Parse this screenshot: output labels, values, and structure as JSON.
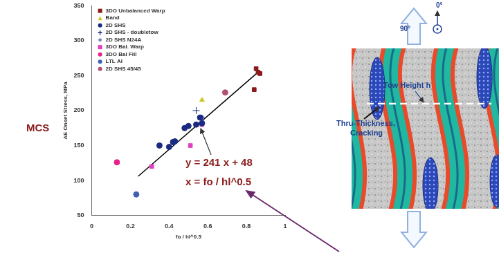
{
  "chart_data": {
    "type": "scatter",
    "side_label": "MCS",
    "x_label": "fo / hl^0.5",
    "y_label": "AE Onset Stress, MPa",
    "xlim": [
      0,
      1
    ],
    "xticks": [
      0,
      0.2,
      0.4,
      0.6,
      0.8,
      1
    ],
    "ylim": [
      50,
      350
    ],
    "yticks": [
      50,
      100,
      150,
      200,
      250,
      300,
      350
    ],
    "grid": false,
    "legend": "upper left",
    "series": [
      {
        "name": "3DO Unbalanced Warp",
        "color": "#8b1a1a",
        "marker": "square",
        "x": [
          0.85,
          0.86,
          0.87,
          0.84
        ],
        "values": [
          260,
          255,
          253,
          230
        ]
      },
      {
        "name": "Band",
        "color": "#c8c820",
        "marker": "triangle",
        "x": [
          0.57
        ],
        "values": [
          215
        ]
      },
      {
        "name": "2D SHS",
        "color": "#1a2a80",
        "marker": "circle",
        "x": [
          0.35,
          0.4,
          0.42,
          0.43,
          0.48,
          0.5,
          0.54,
          0.56,
          0.57
        ],
        "values": [
          150,
          148,
          155,
          156,
          175,
          178,
          180,
          190,
          182
        ]
      },
      {
        "name": "2D SHS - doubletow",
        "color": "#1a2a80",
        "marker": "cross",
        "x": [
          0.54
        ],
        "values": [
          200
        ]
      },
      {
        "name": "2D SHS N24A",
        "color": "#8080c0",
        "marker": "diamond",
        "x": [
          0.57
        ],
        "values": [
          190
        ]
      },
      {
        "name": "3DO Bal. Warp",
        "color": "#e040c0",
        "marker": "square",
        "x": [
          0.31,
          0.51,
          0.57
        ],
        "values": [
          120,
          150,
          180
        ]
      },
      {
        "name": "3DO Bal Fill",
        "color": "#e8208c",
        "marker": "circle",
        "x": [
          0.13
        ],
        "values": [
          126
        ]
      },
      {
        "name": "LTL AI",
        "color": "#4060b0",
        "marker": "circle",
        "x": [
          0.23
        ],
        "values": [
          80
        ]
      },
      {
        "name": "2D SHS 45/45",
        "color": "#b05070",
        "marker": "circle",
        "x": [
          0.69
        ],
        "values": [
          226
        ]
      }
    ],
    "trend_line": {
      "color": "#000000",
      "x": [
        0.24,
        0.86
      ],
      "values": [
        106,
        255
      ]
    },
    "annotations": [
      "y = 241 x + 48",
      "x = fo / hl^0.5"
    ]
  },
  "diagram": {
    "top_angle": "0°",
    "side_angle": "90°",
    "tow_height": "Tow Height h",
    "crack": [
      "Thru-Thickness,",
      "Cracking"
    ]
  }
}
